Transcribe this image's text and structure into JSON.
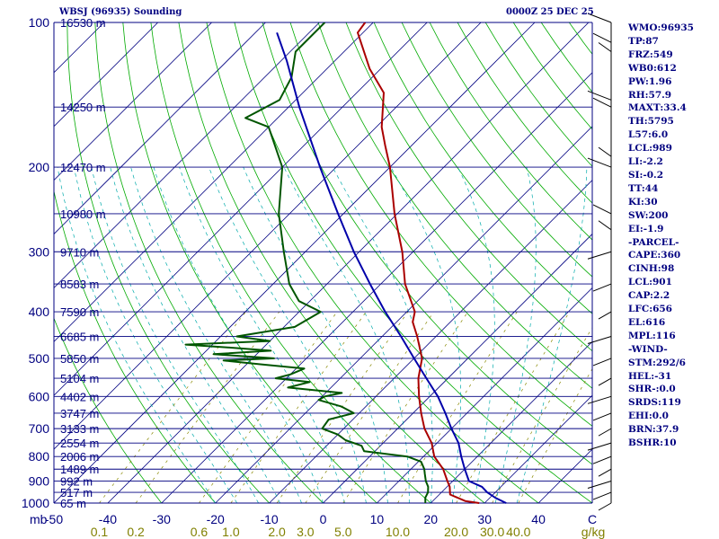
{
  "header": {
    "station": "WBSJ (96935) Sounding",
    "time": "0000Z 25 DEC 25"
  },
  "indices": [
    "WMO:96935",
    "TP:87",
    "FRZ:549",
    "WB0:612",
    "PW:1.96",
    "RH:57.9",
    "MAXT:33.4",
    "TH:5795",
    "L57:6.0",
    "LCL:989",
    "LI:-2.2",
    "SI:-0.2",
    "TT:44",
    "KI:30",
    "SW:200",
    "EI:-1.9",
    "-PARCEL-",
    "CAPE:360",
    "CINH:98",
    "LCL:901",
    "CAP:2.2",
    "LFC:656",
    "EL:616",
    "MPL:116",
    "-WIND-",
    "STM:292/6",
    "HEL:-31",
    "SHR-:0.0",
    "SRDS:119",
    "EHI:0.0",
    "BRN:37.9",
    "BSHR:10"
  ],
  "chart_data": {
    "type": "line",
    "title": "WBSJ (96935) Sounding",
    "subtitle": "0000Z 25 DEC 25",
    "pressure_axis": {
      "scale": "log",
      "range": [
        1000,
        100
      ],
      "ticks": [
        100,
        200,
        300,
        400,
        500,
        600,
        700,
        800,
        900,
        1000
      ],
      "label": "mb"
    },
    "temperature_axis": {
      "range": [
        -50,
        50
      ],
      "ticks": [
        -50,
        -40,
        -30,
        -20,
        -10,
        0,
        10,
        20,
        30,
        40
      ],
      "label": "C",
      "skew": true
    },
    "mixing_ratio_labels": [
      "0.1",
      "0.2",
      "0.6",
      "1.0",
      "2.0",
      "3.0",
      "5.0",
      "10.0",
      "20.0",
      "30.0",
      "40.0"
    ],
    "mixing_ratio_unit": "g/kg",
    "height_labels": [
      {
        "p": 100,
        "label": "16530 m"
      },
      {
        "p": 150,
        "label": "14250 m"
      },
      {
        "p": 200,
        "label": "12470 m"
      },
      {
        "p": 250,
        "label": "10980 m"
      },
      {
        "p": 300,
        "label": "9710 m"
      },
      {
        "p": 350,
        "label": "8583 m"
      },
      {
        "p": 400,
        "label": "7590 m"
      },
      {
        "p": 450,
        "label": "6685 m"
      },
      {
        "p": 500,
        "label": "5850 m"
      },
      {
        "p": 550,
        "label": "5104 m"
      },
      {
        "p": 600,
        "label": "4402 m"
      },
      {
        "p": 650,
        "label": "3747 m"
      },
      {
        "p": 700,
        "label": "3133 m"
      },
      {
        "p": 750,
        "label": "2554 m"
      },
      {
        "p": 800,
        "label": "2006 m"
      },
      {
        "p": 850,
        "label": "1489 m"
      },
      {
        "p": 900,
        "label": "992 m"
      },
      {
        "p": 950,
        "label": "517 m"
      },
      {
        "p": 1000,
        "label": "65 m"
      }
    ],
    "series": [
      {
        "role": "temperature",
        "color": "#aa0000",
        "points": [
          [
            1000,
            29.0
          ],
          [
            990,
            26.0
          ],
          [
            960,
            22.0
          ],
          [
            925,
            20.5
          ],
          [
            900,
            19.0
          ],
          [
            850,
            16.0
          ],
          [
            800,
            12.0
          ],
          [
            750,
            9.0
          ],
          [
            700,
            5.0
          ],
          [
            650,
            1.5
          ],
          [
            600,
            -2.0
          ],
          [
            550,
            -5.5
          ],
          [
            500,
            -8.5
          ],
          [
            450,
            -13.5
          ],
          [
            420,
            -17.0
          ],
          [
            400,
            -18.5
          ],
          [
            350,
            -25.5
          ],
          [
            300,
            -32.0
          ],
          [
            250,
            -40.5
          ],
          [
            200,
            -50.0
          ],
          [
            180,
            -55.0
          ],
          [
            165,
            -59.0
          ],
          [
            140,
            -65.0
          ],
          [
            125,
            -72.0
          ],
          [
            105,
            -81.0
          ],
          [
            100,
            -81.5
          ]
        ]
      },
      {
        "role": "dewpoint",
        "color": "#005500",
        "points": [
          [
            1000,
            19.0
          ],
          [
            975,
            18.0
          ],
          [
            950,
            17.5
          ],
          [
            925,
            16.5
          ],
          [
            900,
            15.0
          ],
          [
            870,
            13.5
          ],
          [
            850,
            12.5
          ],
          [
            820,
            10.5
          ],
          [
            800,
            7.0
          ],
          [
            780,
            -2.0
          ],
          [
            760,
            -3.5
          ],
          [
            740,
            -7.5
          ],
          [
            720,
            -10.0
          ],
          [
            700,
            -14.0
          ],
          [
            670,
            -14.5
          ],
          [
            650,
            -11.0
          ],
          [
            630,
            -14.5
          ],
          [
            610,
            -20.0
          ],
          [
            600,
            -19.5
          ],
          [
            590,
            -17.0
          ],
          [
            575,
            -28.0
          ],
          [
            560,
            -25.0
          ],
          [
            550,
            -32.0
          ],
          [
            540,
            -30.0
          ],
          [
            525,
            -28.5
          ],
          [
            515,
            -37.0
          ],
          [
            505,
            -45.0
          ],
          [
            500,
            -36.0
          ],
          [
            490,
            -48.0
          ],
          [
            482,
            -38.0
          ],
          [
            475,
            -46.0
          ],
          [
            468,
            -55.0
          ],
          [
            460,
            -40.0
          ],
          [
            450,
            -47.0
          ],
          [
            430,
            -38.0
          ],
          [
            400,
            -36.0
          ],
          [
            380,
            -42.0
          ],
          [
            350,
            -47.0
          ],
          [
            300,
            -54.0
          ],
          [
            250,
            -62.0
          ],
          [
            200,
            -70.0
          ],
          [
            165,
            -80.0
          ],
          [
            158,
            -86.0
          ],
          [
            145,
            -83.0
          ],
          [
            130,
            -85.0
          ],
          [
            115,
            -89.0
          ],
          [
            100,
            -89.0
          ]
        ]
      },
      {
        "role": "parcel",
        "color": "#0000aa",
        "points": [
          [
            1000,
            34.0
          ],
          [
            975,
            31.0
          ],
          [
            950,
            28.5
          ],
          [
            925,
            26.5
          ],
          [
            900,
            23.0
          ],
          [
            850,
            20.0
          ],
          [
            800,
            17.0
          ],
          [
            750,
            14.0
          ],
          [
            700,
            10.0
          ],
          [
            650,
            6.0
          ],
          [
            600,
            1.5
          ],
          [
            550,
            -4.0
          ],
          [
            500,
            -10.0
          ],
          [
            450,
            -16.5
          ],
          [
            400,
            -24.0
          ],
          [
            350,
            -32.0
          ],
          [
            300,
            -41.0
          ],
          [
            250,
            -51.0
          ],
          [
            200,
            -63.0
          ],
          [
            150,
            -78.0
          ],
          [
            120,
            -89.0
          ],
          [
            105,
            -96.0
          ]
        ]
      }
    ],
    "wind_barbs": [
      {
        "p": 100
      },
      {
        "p": 110
      },
      {
        "p": 115
      },
      {
        "p": 145
      },
      {
        "p": 150
      },
      {
        "p": 190
      },
      {
        "p": 200
      },
      {
        "p": 250
      },
      {
        "p": 270
      },
      {
        "p": 300
      },
      {
        "p": 350
      },
      {
        "p": 400
      },
      {
        "p": 450
      },
      {
        "p": 500
      },
      {
        "p": 550
      },
      {
        "p": 600
      },
      {
        "p": 650
      },
      {
        "p": 700
      },
      {
        "p": 750
      },
      {
        "p": 800
      },
      {
        "p": 850
      },
      {
        "p": 900
      },
      {
        "p": 950
      },
      {
        "p": 1000
      }
    ],
    "grid": true
  }
}
